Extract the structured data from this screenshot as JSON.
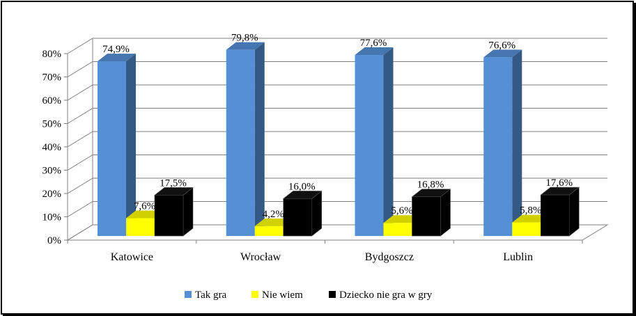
{
  "chart_data": {
    "type": "bar",
    "title": "",
    "xlabel": "",
    "ylabel": "",
    "categories": [
      "Katowice",
      "Wrocław",
      "Bydgoszcz",
      "Lublin"
    ],
    "series": [
      {
        "name": "Tak gra",
        "values": [
          74.9,
          79.8,
          77.6,
          76.6
        ],
        "labels": [
          "74,9%",
          "79,8%",
          "77,6%",
          "76,6%"
        ],
        "color": "#5590D6"
      },
      {
        "name": "Nie wiem",
        "values": [
          7.6,
          4.2,
          5.6,
          5.8
        ],
        "labels": [
          "7,6%",
          "4,2%",
          "5,6%",
          "5,8%"
        ],
        "color": "#FFFF00"
      },
      {
        "name": "Dziecko nie gra w gry",
        "values": [
          17.5,
          16.0,
          16.8,
          17.6
        ],
        "labels": [
          "17,5%",
          "16,0%",
          "16,8%",
          "17,6%"
        ],
        "color": "#000000"
      }
    ],
    "ylim": [
      0,
      80
    ],
    "yticks": [
      "0%",
      "10%",
      "20%",
      "30%",
      "40%",
      "50%",
      "60%",
      "70%",
      "80%"
    ],
    "grid": true,
    "style": "3d-clustered-column",
    "legend_position": "bottom"
  }
}
